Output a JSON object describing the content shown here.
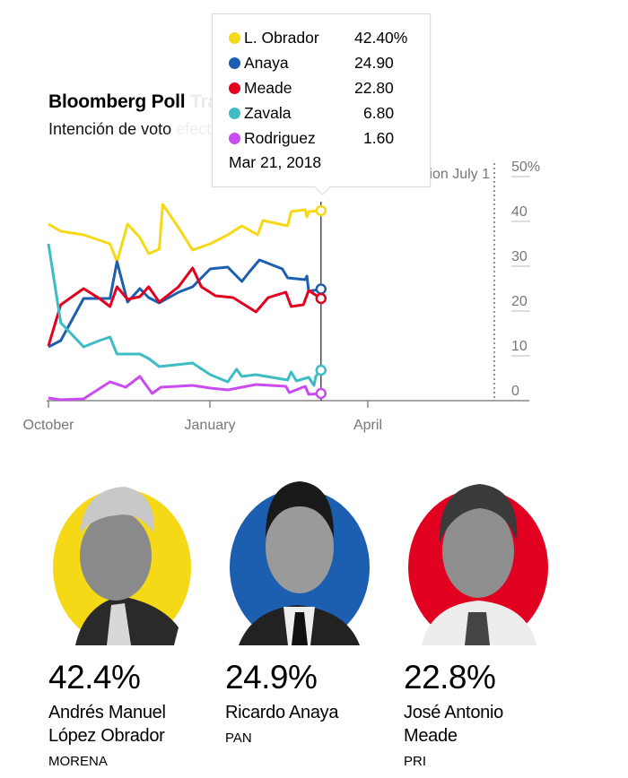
{
  "header": {
    "title_visible": "Bloomberg Poll",
    "title_hidden": " Tracker",
    "subtitle_visible": "Intención de voto",
    "subtitle_hidden": " efectiva"
  },
  "tooltip": {
    "date": "Mar 21, 2018",
    "rows": [
      {
        "name": "L. Obrador",
        "value": "42.40%",
        "color": "#f5d917"
      },
      {
        "name": "Anaya",
        "value": "24.90",
        "color": "#1c5fb0"
      },
      {
        "name": "Meade",
        "value": "22.80",
        "color": "#e1001f"
      },
      {
        "name": "Zavala",
        "value": "6.80",
        "color": "#3dbcc3"
      },
      {
        "name": "Rodriguez",
        "value": "1.60",
        "color": "#c94cf0"
      }
    ]
  },
  "chart_data": {
    "type": "line",
    "title": "Bloomberg Poll Tracker",
    "subtitle": "Intención de voto efectiva",
    "xlabel": "",
    "ylabel": "",
    "x_unit": "days since Oct 1, 2017",
    "xlim": [
      0,
      274
    ],
    "ylim": [
      0,
      50
    ],
    "y_ticks": [
      0,
      10,
      20,
      30,
      40,
      50
    ],
    "y_tick_labels": [
      "0",
      "10",
      "20",
      "30",
      "40",
      "50%"
    ],
    "x_ticks": [
      {
        "day": 0,
        "label": "October"
      },
      {
        "day": 92,
        "label": "January"
      },
      {
        "day": 182,
        "label": "April"
      }
    ],
    "annotation": {
      "day": 254,
      "label": "Election July 1"
    },
    "hover_day": 155,
    "grid": false,
    "legend": "tooltip (top-center)",
    "series": [
      {
        "name": "L. Obrador",
        "color": "#f5d917",
        "x": [
          0,
          7,
          20,
          29,
          35,
          39,
          45,
          52,
          57,
          63,
          65,
          74,
          82,
          92,
          102,
          110,
          119,
          122,
          136,
          138,
          146,
          147,
          148,
          155
        ],
        "values": [
          39.4,
          37.8,
          37.0,
          35.8,
          35.0,
          31.0,
          39.4,
          36.4,
          32.8,
          33.8,
          43.8,
          38.6,
          33.6,
          35.0,
          37.0,
          39.0,
          37.0,
          40.2,
          39.0,
          42.2,
          42.6,
          41.0,
          42.2,
          42.4
        ]
      },
      {
        "name": "Anaya",
        "color": "#1c5fb0",
        "x": [
          0,
          7,
          20,
          29,
          35,
          39,
          45,
          52,
          57,
          63,
          74,
          82,
          92,
          102,
          110,
          114,
          120,
          133,
          136,
          146,
          147,
          148,
          155
        ],
        "values": [
          12.0,
          13.4,
          22.8,
          22.8,
          22.8,
          31.0,
          22.0,
          25.0,
          23.0,
          21.8,
          24.2,
          25.4,
          29.4,
          29.8,
          26.6,
          28.6,
          31.4,
          29.4,
          27.4,
          27.0,
          27.8,
          24.4,
          24.9
        ]
      },
      {
        "name": "Meade",
        "color": "#e1001f",
        "x": [
          0,
          7,
          20,
          29,
          35,
          39,
          45,
          52,
          57,
          63,
          74,
          82,
          87,
          95,
          105,
          118,
          125,
          135,
          138,
          145,
          148,
          151,
          155
        ],
        "values": [
          12.2,
          21.4,
          25.0,
          22.8,
          21.0,
          25.4,
          22.6,
          23.2,
          25.4,
          22.0,
          25.4,
          29.6,
          25.4,
          23.4,
          23.0,
          19.8,
          23.0,
          24.2,
          21.0,
          21.4,
          24.6,
          23.8,
          22.8
        ]
      },
      {
        "name": "Zavala",
        "color": "#3dbcc3",
        "x": [
          0,
          7,
          20,
          29,
          35,
          39,
          52,
          57,
          63,
          82,
          92,
          102,
          107,
          110,
          118,
          136,
          138,
          141,
          148,
          151,
          152,
          155
        ],
        "values": [
          35.0,
          17.4,
          12.0,
          13.4,
          14.2,
          10.4,
          10.4,
          9.4,
          7.6,
          8.4,
          5.8,
          4.2,
          7.0,
          5.4,
          5.8,
          4.6,
          6.4,
          4.4,
          5.2,
          3.4,
          5.4,
          6.8
        ]
      },
      {
        "name": "Rodriguez",
        "color": "#c94cf0",
        "x": [
          0,
          7,
          20,
          35,
          44,
          52,
          59,
          64,
          82,
          92,
          102,
          118,
          135,
          137,
          146,
          148,
          155
        ],
        "values": [
          0.6,
          0.2,
          0.4,
          4.2,
          3.0,
          5.4,
          1.6,
          3.0,
          3.4,
          2.8,
          2.4,
          3.6,
          3.2,
          1.8,
          3.2,
          1.4,
          1.6
        ]
      }
    ]
  },
  "candidates": [
    {
      "pct": "42.4%",
      "name_line1": "Andrés Manuel",
      "name_line2": "López Obrador",
      "party": "MORENA",
      "color": "#f5d917"
    },
    {
      "pct": "24.9%",
      "name_line1": "Ricardo Anaya",
      "name_line2": "",
      "party": "PAN",
      "color": "#1c5fb0"
    },
    {
      "pct": "22.8%",
      "name_line1": "José Antonio",
      "name_line2": "Meade",
      "party": "PRI",
      "color": "#e1001f"
    }
  ]
}
